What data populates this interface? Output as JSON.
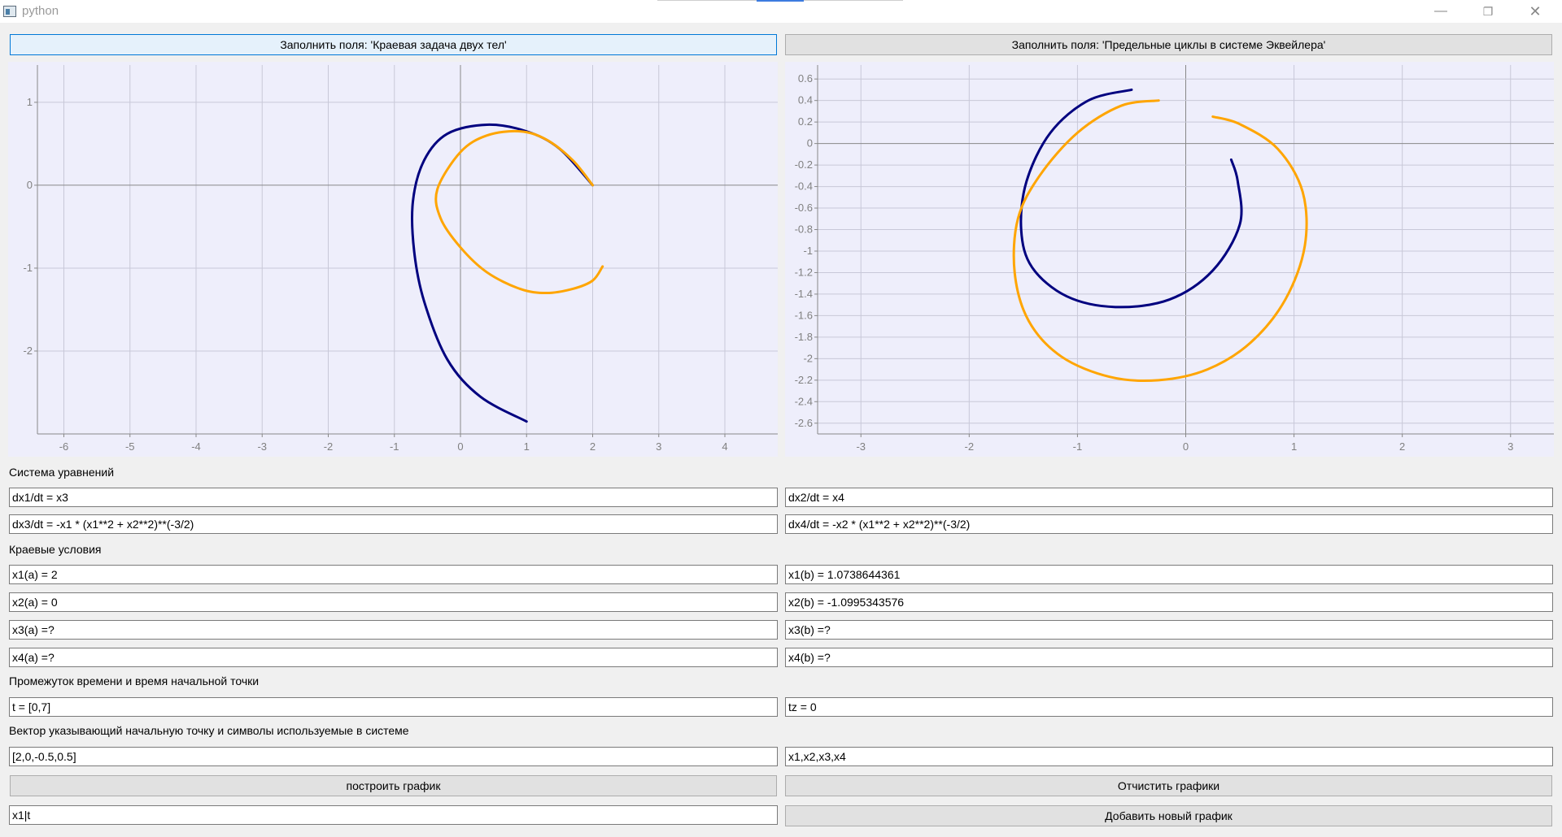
{
  "window": {
    "title": "python"
  },
  "buttons": {
    "fill_two_body": "Заполнить поля: 'Краевая задача двух тел'",
    "fill_ekweiler": "Заполнить поля: 'Предельные циклы в системе Эквейлера'",
    "plot": "построить график",
    "clear": "Отчистить графики",
    "add_plot": "Добавить новый график"
  },
  "sections": {
    "system": "Система уравнений",
    "boundary": "Краевые условия",
    "time": "Промежуток времени и время начальной точки",
    "vector": "Вектор указывающий начальную точку и символы используемые в системе"
  },
  "fields": {
    "eq1": "dx1/dt = x3",
    "eq2": "dx2/dt = x4",
    "eq3": "dx3/dt = -x1 * (x1**2 + x2**2)**(-3/2)",
    "eq4": "dx4/dt = -x2 * (x1**2 + x2**2)**(-3/2)",
    "bc_x1a": "x1(a) = 2",
    "bc_x1b": "x1(b) = 1.0738644361",
    "bc_x2a": "x2(a) = 0",
    "bc_x2b": "x2(b) = -1.0995343576",
    "bc_x3a": "x3(a) =?",
    "bc_x3b": "x3(b) =?",
    "bc_x4a": "x4(a) =?",
    "bc_x4b": "x4(b) =?",
    "time_span": "t = [0,7]",
    "tz": "tz = 0",
    "start_vector": "[2,0,-0.5,0.5]",
    "symbols": "x1,x2,x3,x4",
    "plot_expr": "x1|t"
  },
  "colors": {
    "series_navy": "#00007f",
    "series_orange": "#ffa500",
    "plot_bg": "#eeeefb",
    "grid": "#c8c8d8",
    "axis": "#888888",
    "tick_text": "#808080"
  },
  "chart_data": [
    {
      "type": "line",
      "title": "",
      "xlim": [
        -6.4,
        4.8
      ],
      "ylim": [
        -3.0,
        1.45
      ],
      "x_ticks": [
        -6,
        -5,
        -4,
        -3,
        -2,
        -1,
        0,
        1,
        2,
        3,
        4
      ],
      "x_tick_labels": [
        "-6",
        "-5",
        "-4",
        "-3",
        "-2",
        "-1",
        "0",
        "1",
        "2",
        "3",
        "4"
      ],
      "y_ticks": [
        1,
        0,
        -1,
        -2
      ],
      "y_tick_labels": [
        "1",
        "0",
        "-1",
        "-2"
      ],
      "grid": true,
      "series": [
        {
          "color": "#00007f",
          "points": [
            [
              2.0,
              0.0
            ],
            [
              1.5,
              0.44
            ],
            [
              1.0,
              0.65
            ],
            [
              0.4,
              0.73
            ],
            [
              -0.2,
              0.62
            ],
            [
              -0.55,
              0.3
            ],
            [
              -0.72,
              -0.2
            ],
            [
              -0.7,
              -0.8
            ],
            [
              -0.55,
              -1.4
            ],
            [
              -0.2,
              -2.1
            ],
            [
              0.3,
              -2.55
            ],
            [
              1.0,
              -2.85
            ]
          ]
        },
        {
          "color": "#ffa500",
          "points": [
            [
              2.0,
              0.0
            ],
            [
              1.7,
              0.3
            ],
            [
              1.3,
              0.55
            ],
            [
              0.9,
              0.65
            ],
            [
              0.4,
              0.6
            ],
            [
              0.0,
              0.4
            ],
            [
              -0.35,
              -0.05
            ],
            [
              -0.3,
              -0.4
            ],
            [
              0.0,
              -0.75
            ],
            [
              0.4,
              -1.05
            ],
            [
              0.9,
              -1.25
            ],
            [
              1.3,
              -1.3
            ],
            [
              1.7,
              -1.25
            ],
            [
              2.0,
              -1.15
            ],
            [
              2.15,
              -0.98
            ]
          ]
        }
      ]
    },
    {
      "type": "line",
      "title": "",
      "xlim": [
        -3.4,
        3.4
      ],
      "ylim": [
        -2.7,
        0.73
      ],
      "x_ticks": [
        -3,
        -2,
        -1,
        0,
        1,
        2,
        3
      ],
      "x_tick_labels": [
        "-3",
        "-2",
        "-1",
        "0",
        "1",
        "2",
        "3"
      ],
      "y_ticks": [
        0.6,
        0.4,
        0.2,
        0,
        -0.2,
        -0.4,
        -0.6,
        -0.8,
        -1,
        -1.2,
        -1.4,
        -1.6,
        -1.8,
        -2,
        -2.2,
        -2.4,
        -2.6
      ],
      "y_tick_labels": [
        "0.6",
        "0.4",
        "0.2",
        "0",
        "-0.2",
        "-0.4",
        "-0.6",
        "-0.8",
        "-1",
        "-1.2",
        "-1.4",
        "-1.6",
        "-1.8",
        "-2",
        "-2.2",
        "-2.4",
        "-2.6"
      ],
      "grid": true,
      "series": [
        {
          "color": "#00007f",
          "points": [
            [
              -0.5,
              0.5
            ],
            [
              -0.9,
              0.4
            ],
            [
              -1.25,
              0.1
            ],
            [
              -1.47,
              -0.35
            ],
            [
              -1.52,
              -0.8
            ],
            [
              -1.42,
              -1.15
            ],
            [
              -1.1,
              -1.42
            ],
            [
              -0.65,
              -1.52
            ],
            [
              -0.15,
              -1.45
            ],
            [
              0.25,
              -1.18
            ],
            [
              0.5,
              -0.75
            ],
            [
              0.48,
              -0.35
            ],
            [
              0.42,
              -0.15
            ]
          ]
        },
        {
          "color": "#ffa500",
          "points": [
            [
              -0.25,
              0.4
            ],
            [
              -0.6,
              0.35
            ],
            [
              -1.0,
              0.1
            ],
            [
              -1.35,
              -0.3
            ],
            [
              -1.55,
              -0.7
            ],
            [
              -1.58,
              -1.2
            ],
            [
              -1.45,
              -1.65
            ],
            [
              -1.15,
              -1.98
            ],
            [
              -0.7,
              -2.17
            ],
            [
              -0.25,
              -2.2
            ],
            [
              0.2,
              -2.1
            ],
            [
              0.6,
              -1.85
            ],
            [
              0.92,
              -1.45
            ],
            [
              1.1,
              -0.95
            ],
            [
              1.08,
              -0.45
            ],
            [
              0.85,
              -0.05
            ],
            [
              0.5,
              0.18
            ],
            [
              0.25,
              0.25
            ]
          ]
        }
      ]
    }
  ]
}
